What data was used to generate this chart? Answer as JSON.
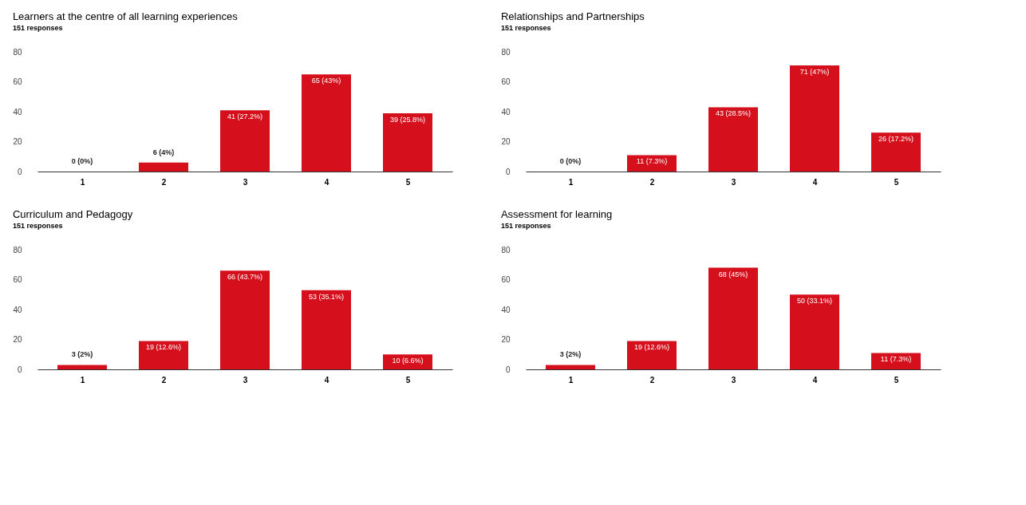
{
  "chart_data": [
    {
      "type": "bar",
      "title": "Learners at the centre of all learning experiences",
      "subtitle": "151 responses",
      "categories": [
        "1",
        "2",
        "3",
        "4",
        "5"
      ],
      "values": [
        0,
        6,
        41,
        65,
        39
      ],
      "value_labels": [
        "0 (0%)",
        "6 (4%)",
        "41 (27.2%)",
        "65 (43%)",
        "39 (25.8%)"
      ],
      "color": "#d50f1c",
      "ylim": [
        0,
        80
      ],
      "yticks": [
        0,
        20,
        40,
        60,
        80
      ],
      "grid": false
    },
    {
      "type": "bar",
      "title": "Relationships and Partnerships",
      "subtitle": "151 responses",
      "categories": [
        "1",
        "2",
        "3",
        "4",
        "5"
      ],
      "values": [
        0,
        11,
        43,
        71,
        26
      ],
      "value_labels": [
        "0 (0%)",
        "11 (7.3%)",
        "43 (28.5%)",
        "71 (47%)",
        "26 (17.2%)"
      ],
      "color": "#d50f1c",
      "ylim": [
        0,
        80
      ],
      "yticks": [
        0,
        20,
        40,
        60,
        80
      ],
      "grid": false
    },
    {
      "type": "bar",
      "title": "Curriculum and Pedagogy",
      "subtitle": "151 responses",
      "categories": [
        "1",
        "2",
        "3",
        "4",
        "5"
      ],
      "values": [
        3,
        19,
        66,
        53,
        10
      ],
      "value_labels": [
        "3 (2%)",
        "19 (12.6%)",
        "66 (43.7%)",
        "53 (35.1%)",
        "10 (6.6%)"
      ],
      "color": "#d50f1c",
      "ylim": [
        0,
        80
      ],
      "yticks": [
        0,
        20,
        40,
        60,
        80
      ],
      "grid": false
    },
    {
      "type": "bar",
      "title": "Assessment for learning",
      "subtitle": "151 responses",
      "categories": [
        "1",
        "2",
        "3",
        "4",
        "5"
      ],
      "values": [
        3,
        19,
        68,
        50,
        11
      ],
      "value_labels": [
        "3 (2%)",
        "19 (12.6%)",
        "68 (45%)",
        "50 (33.1%)",
        "11 (7.3%)"
      ],
      "color": "#d50f1c",
      "ylim": [
        0,
        80
      ],
      "yticks": [
        0,
        20,
        40,
        60,
        80
      ],
      "grid": false
    }
  ]
}
